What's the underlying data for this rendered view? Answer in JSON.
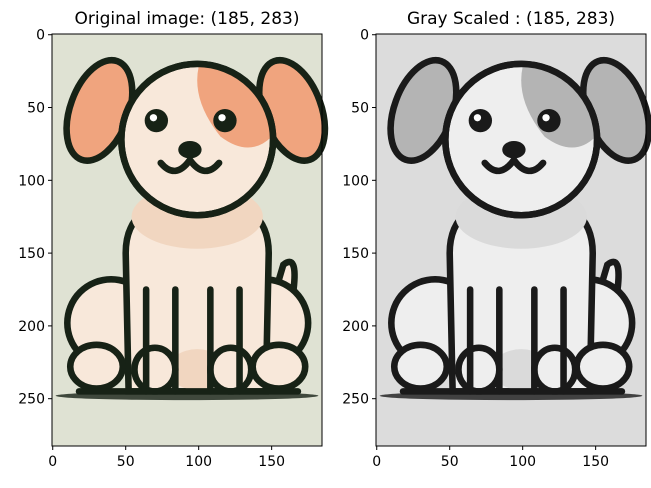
{
  "chart_data": [
    {
      "type": "image",
      "title": "Original image: (185, 283)",
      "xlim": [
        -0.5,
        184.5
      ],
      "ylim": [
        282.5,
        -0.5
      ],
      "xticks": [
        0,
        50,
        100,
        150
      ],
      "yticks": [
        0,
        50,
        100,
        150,
        200,
        250
      ]
    },
    {
      "type": "image",
      "title": "Gray Scaled : (185, 283)",
      "xlim": [
        -0.5,
        184.5
      ],
      "ylim": [
        282.5,
        -0.5
      ],
      "xticks": [
        0,
        50,
        100,
        150
      ],
      "yticks": [
        0,
        50,
        100,
        150,
        200,
        250
      ]
    }
  ]
}
